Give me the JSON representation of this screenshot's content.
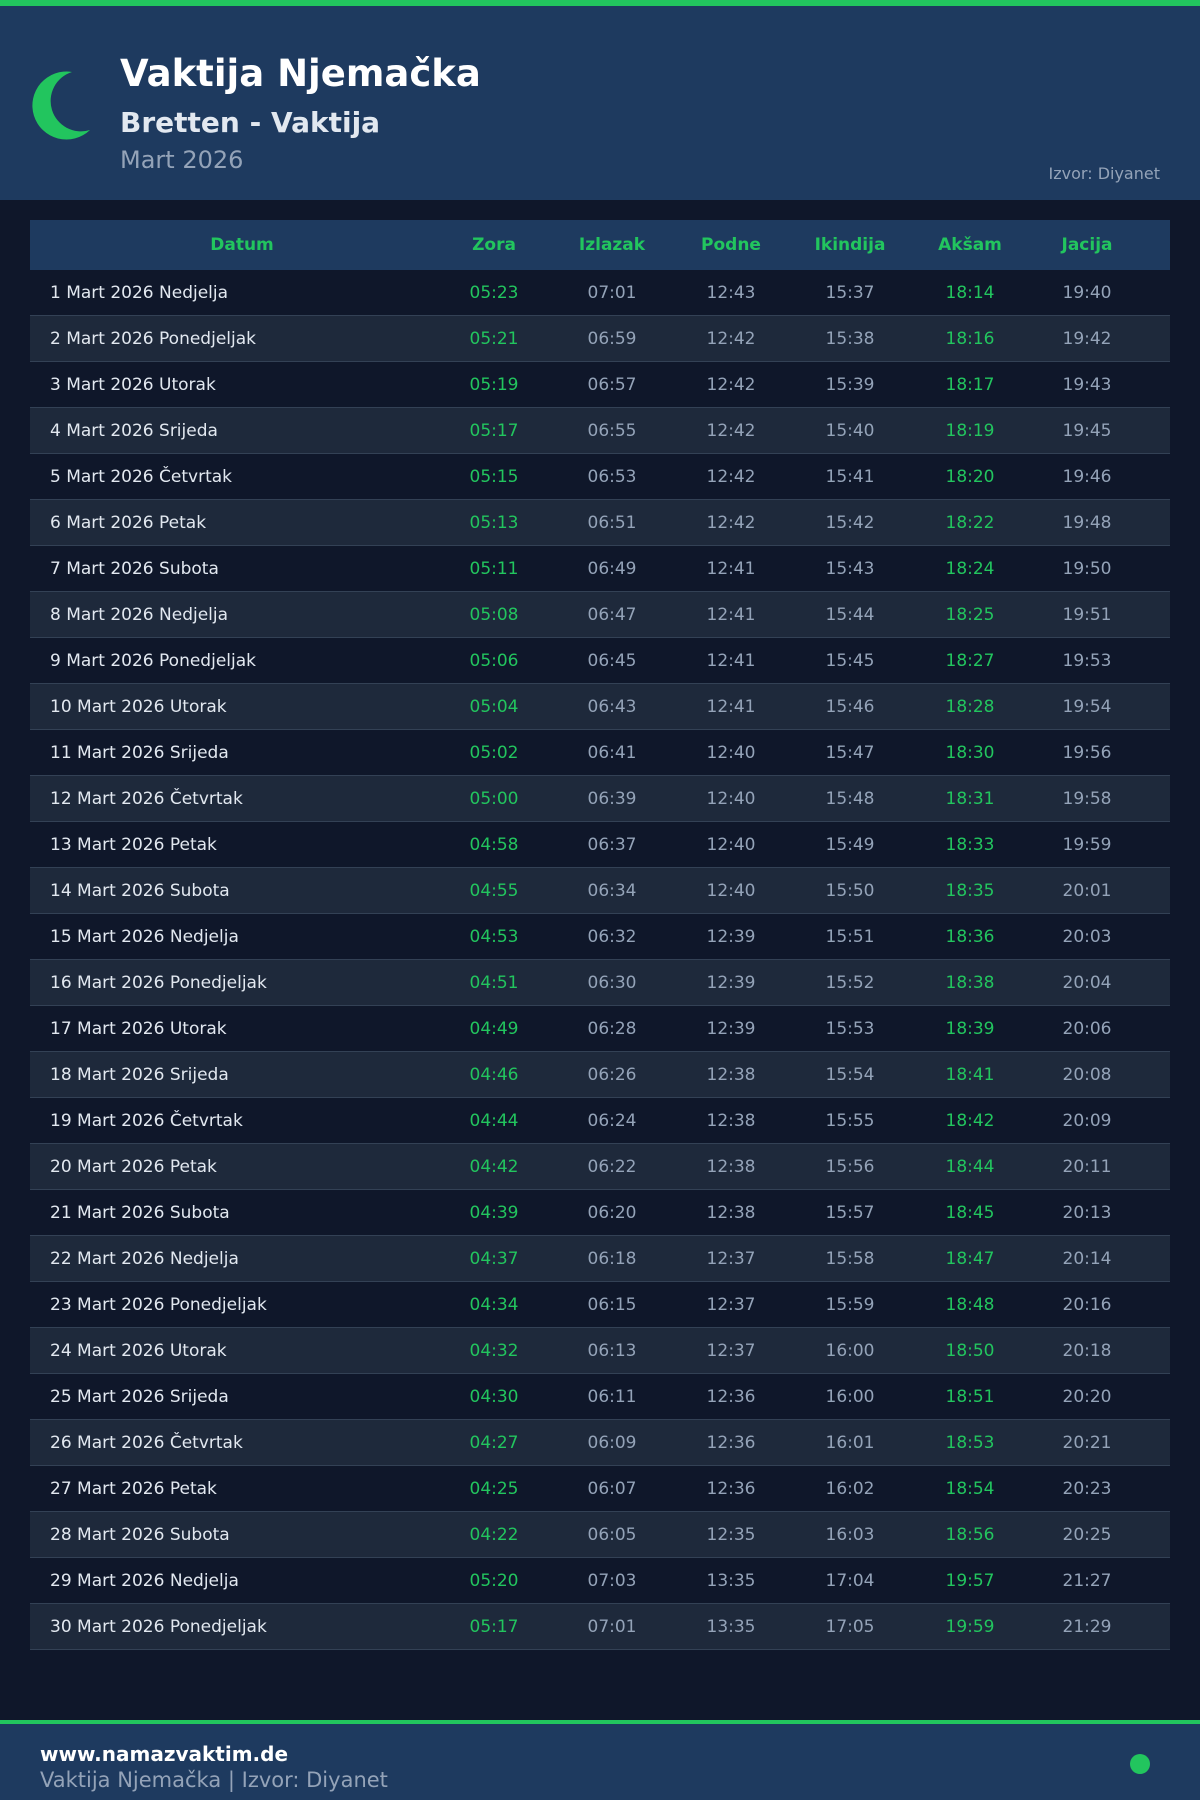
{
  "header": {
    "title": "Vaktija Njemačka",
    "subtitle": "Bretten - Vaktija",
    "month": "Mart 2026",
    "source": "Izvor: Diyanet",
    "moon_icon": "crescent-moon-icon"
  },
  "colors": {
    "accent": "#22c55e",
    "header_bg": "#1e3a5f",
    "page_bg": "#0f172a"
  },
  "table": {
    "columns": [
      "Datum",
      "Zora",
      "Izlazak",
      "Podne",
      "Ikindija",
      "Akšam",
      "Jacija"
    ],
    "rows": [
      [
        "1 Mart 2026 Nedjelja",
        "05:23",
        "07:01",
        "12:43",
        "15:37",
        "18:14",
        "19:40"
      ],
      [
        "2 Mart 2026 Ponedjeljak",
        "05:21",
        "06:59",
        "12:42",
        "15:38",
        "18:16",
        "19:42"
      ],
      [
        "3 Mart 2026 Utorak",
        "05:19",
        "06:57",
        "12:42",
        "15:39",
        "18:17",
        "19:43"
      ],
      [
        "4 Mart 2026 Srijeda",
        "05:17",
        "06:55",
        "12:42",
        "15:40",
        "18:19",
        "19:45"
      ],
      [
        "5 Mart 2026 Četvrtak",
        "05:15",
        "06:53",
        "12:42",
        "15:41",
        "18:20",
        "19:46"
      ],
      [
        "6 Mart 2026 Petak",
        "05:13",
        "06:51",
        "12:42",
        "15:42",
        "18:22",
        "19:48"
      ],
      [
        "7 Mart 2026 Subota",
        "05:11",
        "06:49",
        "12:41",
        "15:43",
        "18:24",
        "19:50"
      ],
      [
        "8 Mart 2026 Nedjelja",
        "05:08",
        "06:47",
        "12:41",
        "15:44",
        "18:25",
        "19:51"
      ],
      [
        "9 Mart 2026 Ponedjeljak",
        "05:06",
        "06:45",
        "12:41",
        "15:45",
        "18:27",
        "19:53"
      ],
      [
        "10 Mart 2026 Utorak",
        "05:04",
        "06:43",
        "12:41",
        "15:46",
        "18:28",
        "19:54"
      ],
      [
        "11 Mart 2026 Srijeda",
        "05:02",
        "06:41",
        "12:40",
        "15:47",
        "18:30",
        "19:56"
      ],
      [
        "12 Mart 2026 Četvrtak",
        "05:00",
        "06:39",
        "12:40",
        "15:48",
        "18:31",
        "19:58"
      ],
      [
        "13 Mart 2026 Petak",
        "04:58",
        "06:37",
        "12:40",
        "15:49",
        "18:33",
        "19:59"
      ],
      [
        "14 Mart 2026 Subota",
        "04:55",
        "06:34",
        "12:40",
        "15:50",
        "18:35",
        "20:01"
      ],
      [
        "15 Mart 2026 Nedjelja",
        "04:53",
        "06:32",
        "12:39",
        "15:51",
        "18:36",
        "20:03"
      ],
      [
        "16 Mart 2026 Ponedjeljak",
        "04:51",
        "06:30",
        "12:39",
        "15:52",
        "18:38",
        "20:04"
      ],
      [
        "17 Mart 2026 Utorak",
        "04:49",
        "06:28",
        "12:39",
        "15:53",
        "18:39",
        "20:06"
      ],
      [
        "18 Mart 2026 Srijeda",
        "04:46",
        "06:26",
        "12:38",
        "15:54",
        "18:41",
        "20:08"
      ],
      [
        "19 Mart 2026 Četvrtak",
        "04:44",
        "06:24",
        "12:38",
        "15:55",
        "18:42",
        "20:09"
      ],
      [
        "20 Mart 2026 Petak",
        "04:42",
        "06:22",
        "12:38",
        "15:56",
        "18:44",
        "20:11"
      ],
      [
        "21 Mart 2026 Subota",
        "04:39",
        "06:20",
        "12:38",
        "15:57",
        "18:45",
        "20:13"
      ],
      [
        "22 Mart 2026 Nedjelja",
        "04:37",
        "06:18",
        "12:37",
        "15:58",
        "18:47",
        "20:14"
      ],
      [
        "23 Mart 2026 Ponedjeljak",
        "04:34",
        "06:15",
        "12:37",
        "15:59",
        "18:48",
        "20:16"
      ],
      [
        "24 Mart 2026 Utorak",
        "04:32",
        "06:13",
        "12:37",
        "16:00",
        "18:50",
        "20:18"
      ],
      [
        "25 Mart 2026 Srijeda",
        "04:30",
        "06:11",
        "12:36",
        "16:00",
        "18:51",
        "20:20"
      ],
      [
        "26 Mart 2026 Četvrtak",
        "04:27",
        "06:09",
        "12:36",
        "16:01",
        "18:53",
        "20:21"
      ],
      [
        "27 Mart 2026 Petak",
        "04:25",
        "06:07",
        "12:36",
        "16:02",
        "18:54",
        "20:23"
      ],
      [
        "28 Mart 2026 Subota",
        "04:22",
        "06:05",
        "12:35",
        "16:03",
        "18:56",
        "20:25"
      ],
      [
        "29 Mart 2026 Nedjelja",
        "05:20",
        "07:03",
        "13:35",
        "17:04",
        "19:57",
        "21:27"
      ],
      [
        "30 Mart 2026 Ponedjeljak",
        "05:17",
        "07:01",
        "13:35",
        "17:05",
        "19:59",
        "21:29"
      ]
    ]
  },
  "footer": {
    "website": "www.namazvaktim.de",
    "tagline": "Vaktija Njemačka | Izvor: Diyanet"
  }
}
